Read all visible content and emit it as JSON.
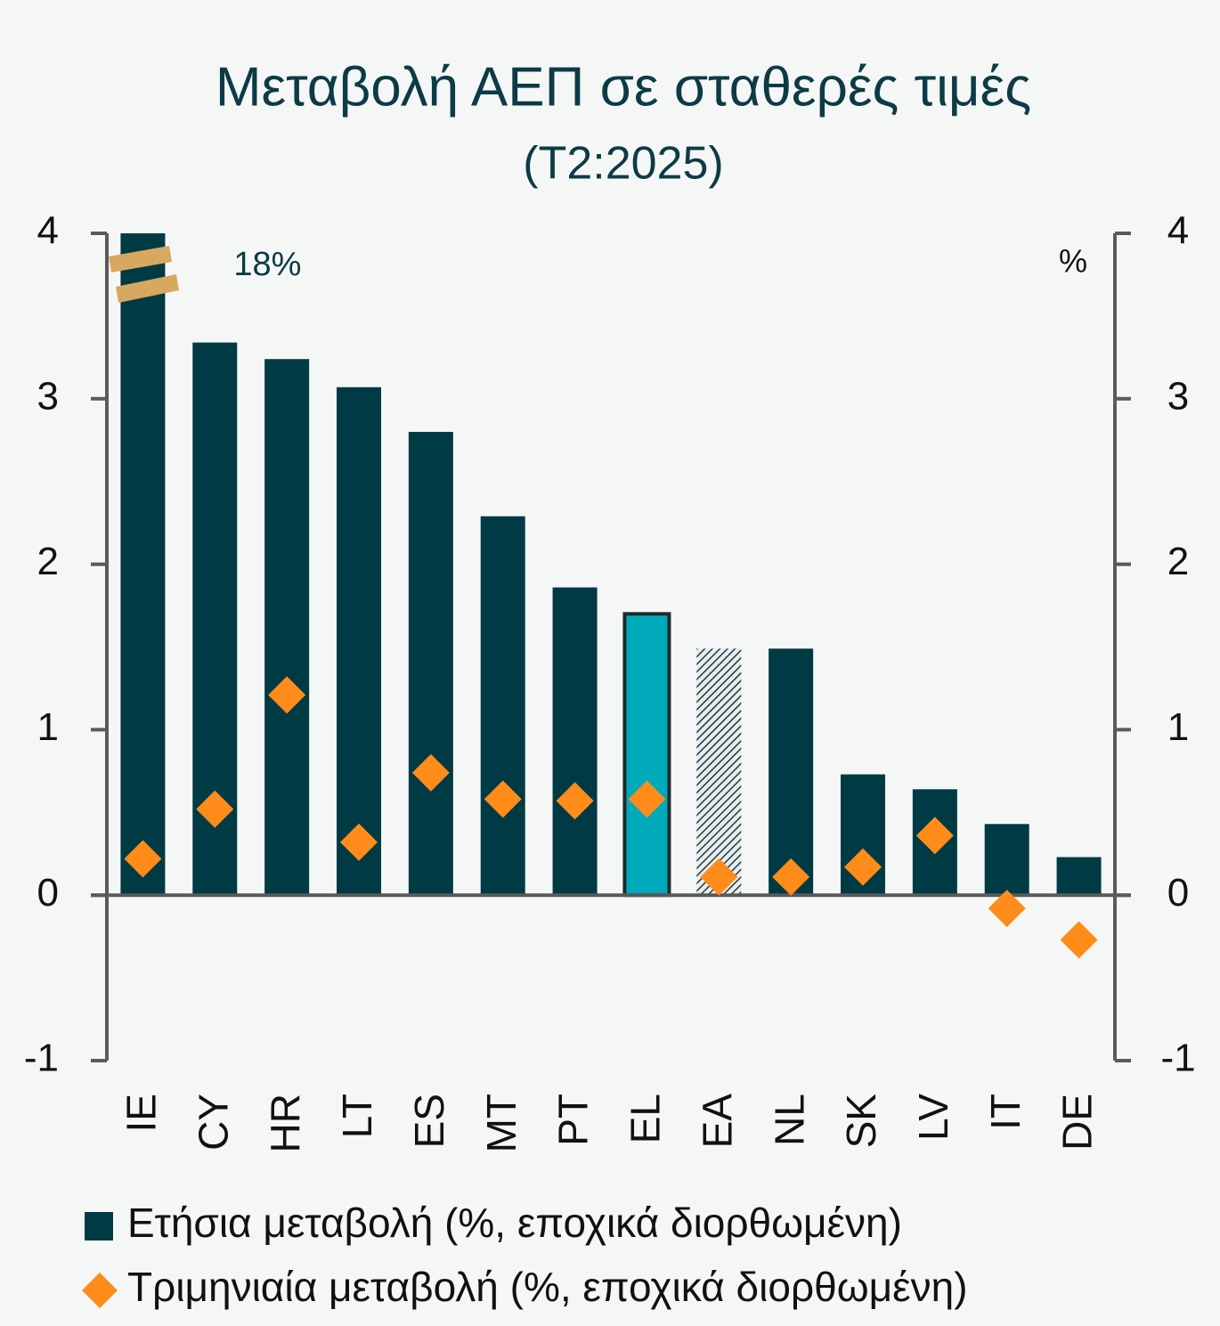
{
  "chart_data": {
    "type": "bar",
    "title": "Μεταβολή ΑΕΠ σε σταθερές τιμές",
    "subtitle": "(Τ2:2025)",
    "unit_label": "%",
    "categories": [
      "IE",
      "CY",
      "HR",
      "LT",
      "ES",
      "MT",
      "PT",
      "EL",
      "EA",
      "NL",
      "SK",
      "LV",
      "IT",
      "DE"
    ],
    "series": [
      {
        "name": "Ετήσια μεταβολή (%, εποχικά διορθωμένη)",
        "type": "bar",
        "color": "#003a45",
        "colors": [
          "#003a45",
          "#003a45",
          "#003a45",
          "#003a45",
          "#003a45",
          "#003a45",
          "#003a45",
          "#00aabb",
          "#003a45",
          "#003a45",
          "#003a45",
          "#003a45",
          "#003a45",
          "#003a45"
        ],
        "edgecolors": [
          null,
          null,
          null,
          null,
          null,
          null,
          null,
          "#1f2a2e",
          null,
          null,
          null,
          null,
          null,
          null
        ],
        "patterns": [
          null,
          null,
          null,
          null,
          null,
          null,
          null,
          null,
          "hatch",
          null,
          null,
          null,
          null,
          null
        ],
        "values": [
          18,
          3.34,
          3.24,
          3.07,
          2.8,
          2.29,
          1.86,
          1.7,
          1.49,
          1.49,
          0.73,
          0.64,
          0.43,
          0.23
        ],
        "value_labels": [
          "18%",
          null,
          null,
          null,
          null,
          null,
          null,
          null,
          null,
          null,
          null,
          null,
          null,
          null
        ]
      },
      {
        "name": "Τριμηνιαία μεταβολή (%, εποχικά διορθωμένη)",
        "type": "scatter",
        "marker": "diamond",
        "color": "#ff8c1a",
        "values": [
          0.22,
          0.52,
          1.21,
          0.32,
          0.74,
          0.58,
          0.57,
          0.58,
          0.11,
          0.11,
          0.17,
          0.36,
          -0.08,
          -0.27
        ]
      }
    ],
    "ylim": [
      -1,
      4
    ],
    "yticks": [
      -1,
      0,
      1,
      2,
      3,
      4
    ],
    "y2lim": [
      -1,
      4
    ],
    "y2ticks": [
      -1,
      0,
      1,
      2,
      3,
      4
    ],
    "legend": "bottom-left"
  }
}
